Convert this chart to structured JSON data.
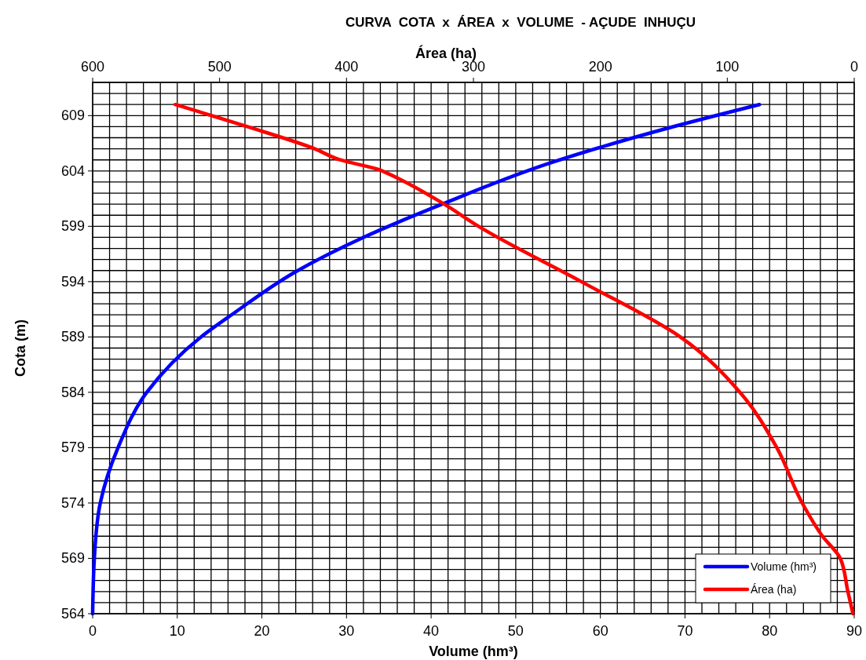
{
  "chart_data": {
    "type": "line",
    "title": "CURVA  COTA  x  ÁREA  x  VOLUME  - AÇUDE  INHUÇU",
    "xlabel": "Volume (hm³)",
    "x2label": "Área (ha)",
    "ylabel": "Cota (m)",
    "xlim": [
      0,
      90
    ],
    "xticks": [
      0,
      10,
      20,
      30,
      40,
      50,
      60,
      70,
      80,
      90
    ],
    "x2lim": [
      600,
      0
    ],
    "x2ticks": [
      600,
      500,
      400,
      300,
      200,
      100,
      0
    ],
    "ylim": [
      564,
      612
    ],
    "yticks": [
      564,
      569,
      574,
      579,
      584,
      589,
      594,
      599,
      604,
      609
    ],
    "grid": true,
    "legend": "bottom right",
    "line_style": "solid",
    "marker": "none",
    "series": [
      {
        "name": "Volume (hm³)",
        "color": "#0000ff",
        "x": [
          0,
          0.2,
          0.9,
          3.0,
          6.4,
          12.8,
          16.6,
          24,
          32,
          41.3,
          54,
          69.1,
          78.8
        ],
        "values": [
          564,
          569,
          574,
          579,
          584,
          589,
          591.1,
          594.9,
          598,
          601,
          604.7,
          608.1,
          610
        ]
      },
      {
        "name": "Área (ha)",
        "color": "#ff0000",
        "axis": "x2",
        "x": [
          1,
          5,
          11,
          25,
          41,
          61,
          90,
          137,
          215,
          296,
          323,
          368,
          374,
          405,
          425,
          478,
          535
        ],
        "values": [
          564,
          566,
          569,
          571,
          574,
          579,
          584,
          589,
          594,
          599,
          601,
          603.8,
          604.1,
          605,
          606,
          608,
          610
        ]
      }
    ]
  }
}
